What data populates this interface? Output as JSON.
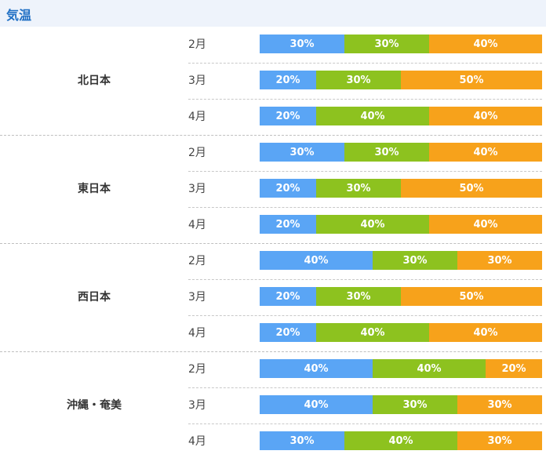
{
  "header": {
    "title": "気温"
  },
  "colors": {
    "below": "#5aa5f5",
    "normal": "#8dc21f",
    "above": "#f7a21b"
  },
  "chart_data": {
    "type": "bar",
    "stacked": true,
    "orientation": "horizontal",
    "title": "気温",
    "categories": [
      "2月",
      "3月",
      "4月"
    ],
    "regions": [
      {
        "name": "北日本",
        "rows": [
          {
            "month": "2月",
            "values": [
              30,
              30,
              40
            ],
            "labels": [
              "30%",
              "30%",
              "40%"
            ]
          },
          {
            "month": "3月",
            "values": [
              20,
              30,
              50
            ],
            "labels": [
              "20%",
              "30%",
              "50%"
            ]
          },
          {
            "month": "4月",
            "values": [
              20,
              40,
              40
            ],
            "labels": [
              "20%",
              "40%",
              "40%"
            ]
          }
        ]
      },
      {
        "name": "東日本",
        "rows": [
          {
            "month": "2月",
            "values": [
              30,
              30,
              40
            ],
            "labels": [
              "30%",
              "30%",
              "40%"
            ]
          },
          {
            "month": "3月",
            "values": [
              20,
              30,
              50
            ],
            "labels": [
              "20%",
              "30%",
              "50%"
            ]
          },
          {
            "month": "4月",
            "values": [
              20,
              40,
              40
            ],
            "labels": [
              "20%",
              "40%",
              "40%"
            ]
          }
        ]
      },
      {
        "name": "西日本",
        "rows": [
          {
            "month": "2月",
            "values": [
              40,
              30,
              30
            ],
            "labels": [
              "40%",
              "30%",
              "30%"
            ]
          },
          {
            "month": "3月",
            "values": [
              20,
              30,
              50
            ],
            "labels": [
              "20%",
              "30%",
              "50%"
            ]
          },
          {
            "month": "4月",
            "values": [
              20,
              40,
              40
            ],
            "labels": [
              "20%",
              "40%",
              "40%"
            ]
          }
        ]
      },
      {
        "name": "沖縄・奄美",
        "rows": [
          {
            "month": "2月",
            "values": [
              40,
              40,
              20
            ],
            "labels": [
              "40%",
              "40%",
              "20%"
            ]
          },
          {
            "month": "3月",
            "values": [
              40,
              30,
              30
            ],
            "labels": [
              "40%",
              "30%",
              "30%"
            ]
          },
          {
            "month": "4月",
            "values": [
              30,
              40,
              30
            ],
            "labels": [
              "30%",
              "40%",
              "30%"
            ]
          }
        ]
      }
    ]
  }
}
